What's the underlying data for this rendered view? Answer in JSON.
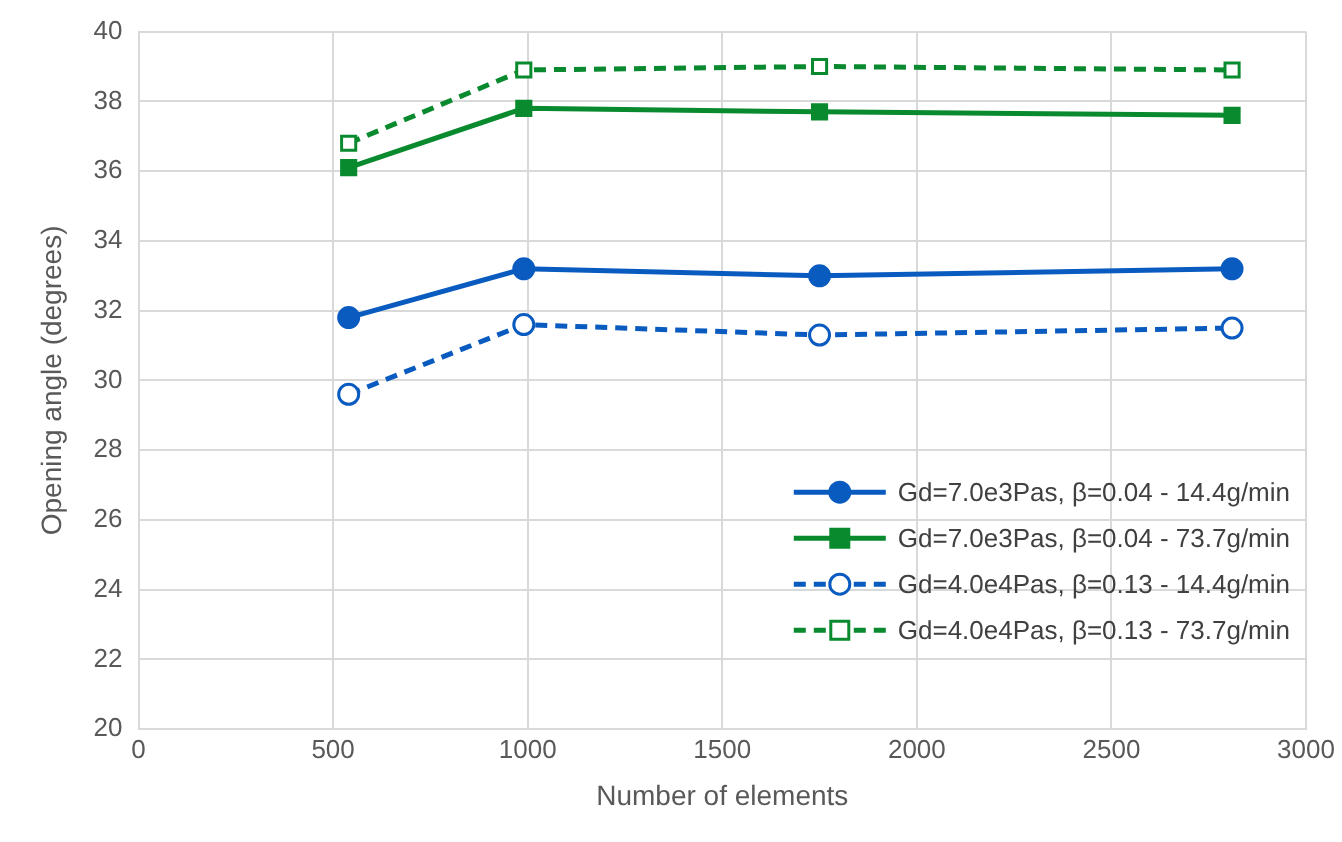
{
  "chart_data": {
    "type": "line",
    "xlabel": "Number of elements",
    "ylabel": "Opening angle (degrees)",
    "xlim": [
      0,
      3000
    ],
    "xticks": [
      0,
      500,
      1000,
      1500,
      2000,
      2500,
      3000
    ],
    "ylim": [
      20,
      40
    ],
    "yticks": [
      20,
      22,
      24,
      26,
      28,
      30,
      32,
      34,
      36,
      38,
      40
    ],
    "grid": true,
    "legend": "bottom right",
    "x": [
      540,
      990,
      1750,
      2810
    ],
    "series": [
      {
        "name": "Gd=7.0e3Pas, β=0.04 - 14.4g/min",
        "color": "#0a5bbf",
        "marker": "circle",
        "line_style": "solid",
        "values": [
          31.8,
          33.2,
          33.0,
          33.2
        ]
      },
      {
        "name": "Gd=7.0e3Pas, β=0.04 - 73.7g/min",
        "color": "#0a8a2e",
        "marker": "square",
        "line_style": "solid",
        "values": [
          36.1,
          37.8,
          37.7,
          37.6
        ]
      },
      {
        "name": "Gd=4.0e4Pas, β=0.13 - 14.4g/min",
        "color": "#0a5bbf",
        "marker": "circle",
        "line_style": "dashed",
        "values": [
          29.6,
          31.6,
          31.3,
          31.5
        ]
      },
      {
        "name": "Gd=4.0e4Pas, β=0.13 - 73.7g/min",
        "color": "#0a8a2e",
        "marker": "square",
        "line_style": "dashed",
        "values": [
          36.8,
          38.9,
          39.0,
          38.9
        ]
      }
    ]
  }
}
